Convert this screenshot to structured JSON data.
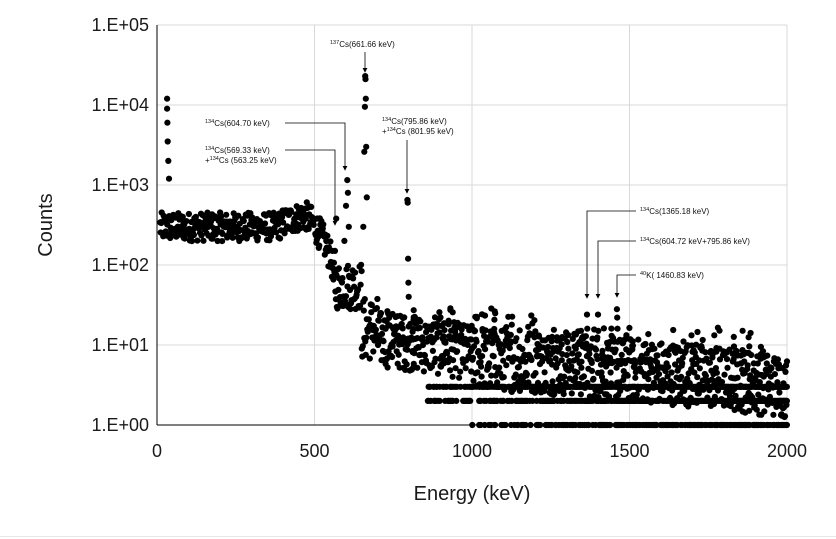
{
  "chart_data": {
    "type": "scatter",
    "title": "",
    "xlabel": "Energy (keV)",
    "ylabel": "Counts",
    "xlim": [
      0,
      2000
    ],
    "ylim": [
      1,
      100000
    ],
    "yscale": "log",
    "grid": true,
    "legend": "none",
    "marker_color": "#000000",
    "x_ticks": [
      {
        "value": 0,
        "label": "0"
      },
      {
        "value": 500,
        "label": "500"
      },
      {
        "value": 1000,
        "label": "1000"
      },
      {
        "value": 1500,
        "label": "1500"
      },
      {
        "value": 2000,
        "label": "2000"
      }
    ],
    "y_ticks": [
      {
        "value": 1,
        "label": "1.E+00"
      },
      {
        "value": 10,
        "label": "1.E+01"
      },
      {
        "value": 100,
        "label": "1.E+02"
      },
      {
        "value": 1000,
        "label": "1.E+03"
      },
      {
        "value": 10000,
        "label": "1.E+04"
      },
      {
        "value": 100000,
        "label": "1.E+05"
      }
    ],
    "annotations": [
      {
        "label_sup": "137",
        "label": "Cs(661.66 keV)",
        "line2_sup": "",
        "line2": "",
        "energy": 661.66
      },
      {
        "label_sup": "134",
        "label": "Cs(604.70 keV)",
        "line2_sup": "",
        "line2": "",
        "energy": 604.7
      },
      {
        "label_sup": "134",
        "label": "Cs(569.33 keV)",
        "line2_sup": "134",
        "line2": "+Cs (563.25 keV)",
        "energy": 569.33
      },
      {
        "label_sup": "134",
        "label": "Cs(795.86 keV)",
        "line2_sup": "134",
        "line2": "+Cs (801.95 keV)",
        "energy": 795.86
      },
      {
        "label_sup": "134",
        "label": "Cs(1365.18 keV)",
        "line2_sup": "",
        "line2": "",
        "energy": 1365.18
      },
      {
        "label_sup": "134",
        "label": "Cs(604.72 keV+795.86 keV)",
        "line2_sup": "",
        "line2": "",
        "energy": 1400.58
      },
      {
        "label_sup": "40",
        "label": "K( 1460.83 keV)",
        "line2_sup": "",
        "line2": "",
        "energy": 1460.83
      }
    ],
    "peaks": [
      {
        "x": 32,
        "y": 12000
      },
      {
        "x": 32,
        "y": 9000
      },
      {
        "x": 33,
        "y": 6000
      },
      {
        "x": 34,
        "y": 3500
      },
      {
        "x": 36,
        "y": 2000
      },
      {
        "x": 38,
        "y": 1200
      },
      {
        "x": 560,
        "y": 90
      },
      {
        "x": 565,
        "y": 150
      },
      {
        "x": 569,
        "y": 380
      },
      {
        "x": 595,
        "y": 200
      },
      {
        "x": 600,
        "y": 550
      },
      {
        "x": 604,
        "y": 1150
      },
      {
        "x": 606,
        "y": 800
      },
      {
        "x": 609,
        "y": 300
      },
      {
        "x": 655,
        "y": 300
      },
      {
        "x": 658,
        "y": 2600
      },
      {
        "x": 660,
        "y": 9500
      },
      {
        "x": 661,
        "y": 23000
      },
      {
        "x": 662,
        "y": 21000
      },
      {
        "x": 663,
        "y": 12000
      },
      {
        "x": 664,
        "y": 3000
      },
      {
        "x": 666,
        "y": 700
      },
      {
        "x": 795,
        "y": 650
      },
      {
        "x": 796,
        "y": 600
      },
      {
        "x": 797,
        "y": 120
      },
      {
        "x": 798,
        "y": 60
      },
      {
        "x": 799,
        "y": 40
      },
      {
        "x": 1365,
        "y": 24
      },
      {
        "x": 1366,
        "y": 16
      },
      {
        "x": 1400,
        "y": 24
      },
      {
        "x": 1401,
        "y": 15
      },
      {
        "x": 1460,
        "y": 28
      },
      {
        "x": 1461,
        "y": 22
      },
      {
        "x": 1462,
        "y": 16
      }
    ],
    "continuum": {
      "description_segments": [
        {
          "from": 10,
          "to": 480,
          "base": 300,
          "spread": 0.18
        },
        {
          "from": 480,
          "to": 560,
          "base_start": 380,
          "base_end": 90,
          "spread": 0.2
        },
        {
          "from": 560,
          "to": 650,
          "base": 55,
          "spread": 0.3
        },
        {
          "from": 650,
          "to": 700,
          "base": 16,
          "spread": 0.4
        },
        {
          "from": 700,
          "to": 1000,
          "base_start": 12,
          "base_end": 8,
          "spread": 0.35
        },
        {
          "from": 1000,
          "to": 2000,
          "base_start": 7,
          "base_end": 3,
          "spread": 0.4
        }
      ]
    }
  }
}
